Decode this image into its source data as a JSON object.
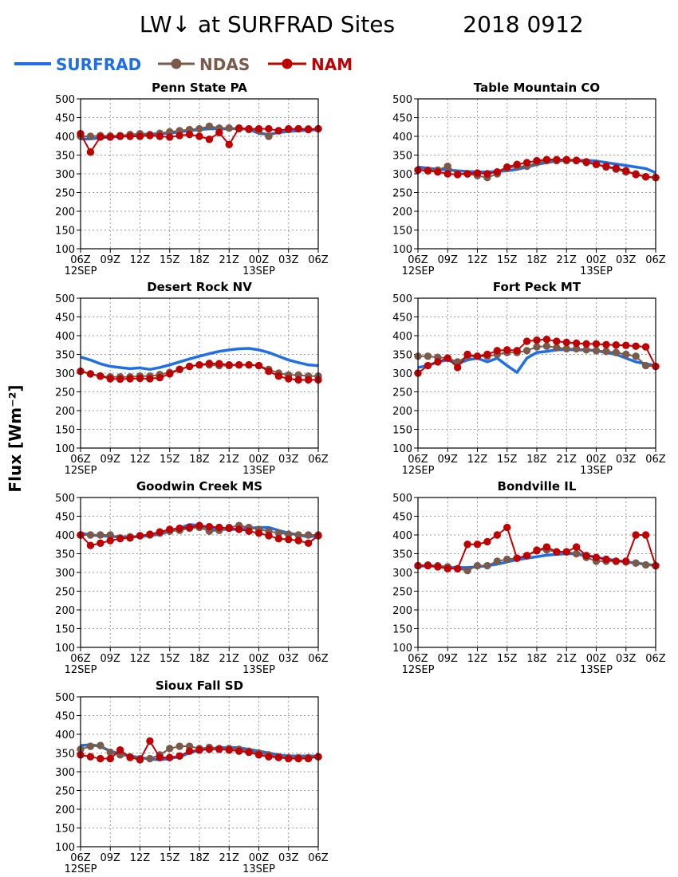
{
  "figure": {
    "title": "LW↓ at SURFRAD Sites",
    "date": "2018 0912",
    "ylabel": "Flux [Wm⁻²]"
  },
  "legend": [
    {
      "name": "SURFRAD",
      "color": "#1e6ee8",
      "marker": "none"
    },
    {
      "name": "NDAS",
      "color": "#7a5a4a",
      "marker": "circle"
    },
    {
      "name": "NAM",
      "color": "#c00000",
      "marker": "circle"
    }
  ],
  "axes": {
    "x_tick_labels": [
      "06Z",
      "09Z",
      "12Z",
      "15Z",
      "18Z",
      "21Z",
      "00Z",
      "03Z",
      "06Z"
    ],
    "x_date_labels": [
      {
        "label": "12SEP",
        "at": 0
      },
      {
        "label": "13SEP",
        "at": 6
      }
    ],
    "y_ticks": [
      100,
      150,
      200,
      250,
      300,
      350,
      400,
      450,
      500
    ],
    "ylim": [
      100,
      500
    ],
    "grid": true
  },
  "chart_data": [
    {
      "type": "line",
      "title": "Penn State PA",
      "x_hours": [
        0,
        1,
        2,
        3,
        4,
        5,
        6,
        7,
        8,
        9,
        10,
        11,
        12,
        13,
        14,
        15,
        16,
        17,
        18,
        19,
        20,
        21,
        22,
        23,
        24
      ],
      "series": [
        {
          "name": "SURFRAD",
          "values": [
            393,
            393,
            396,
            398,
            400,
            402,
            405,
            406,
            407,
            408,
            412,
            415,
            418,
            420,
            420,
            420,
            421,
            418,
            408,
            405,
            410,
            413,
            415,
            416,
            418
          ]
        },
        {
          "name": "NDAS",
          "values": [
            400,
            400,
            402,
            401,
            402,
            405,
            407,
            405,
            408,
            412,
            415,
            418,
            420,
            427,
            422,
            422,
            420,
            418,
            415,
            400,
            415,
            418,
            420,
            420,
            420
          ]
        },
        {
          "name": "NAM",
          "values": [
            407,
            358,
            398,
            398,
            400,
            400,
            400,
            402,
            400,
            398,
            402,
            405,
            400,
            392,
            410,
            378,
            422,
            420,
            420,
            420,
            415,
            420,
            420,
            418,
            420
          ]
        }
      ]
    },
    {
      "type": "line",
      "title": "Table Mountain CO",
      "x_hours": [
        0,
        1,
        2,
        3,
        4,
        5,
        6,
        7,
        8,
        9,
        10,
        11,
        12,
        13,
        14,
        15,
        16,
        17,
        18,
        19,
        20,
        21,
        22,
        23,
        24
      ],
      "series": [
        {
          "name": "SURFRAD",
          "values": [
            318,
            315,
            312,
            310,
            308,
            306,
            305,
            305,
            306,
            308,
            312,
            318,
            325,
            330,
            334,
            336,
            336,
            336,
            334,
            330,
            326,
            322,
            318,
            314,
            303
          ]
        },
        {
          "name": "NDAS",
          "values": [
            310,
            310,
            310,
            320,
            300,
            300,
            295,
            290,
            300,
            315,
            320,
            320,
            330,
            335,
            335,
            335,
            335,
            330,
            325,
            318,
            312,
            305,
            300,
            292,
            290
          ]
        },
        {
          "name": "NAM",
          "values": [
            310,
            308,
            305,
            300,
            298,
            300,
            302,
            300,
            305,
            318,
            325,
            330,
            335,
            338,
            338,
            338,
            336,
            332,
            325,
            320,
            315,
            308,
            298,
            292,
            290
          ]
        }
      ]
    },
    {
      "type": "line",
      "title": "Desert Rock NV",
      "x_hours": [
        0,
        1,
        2,
        3,
        4,
        5,
        6,
        7,
        8,
        9,
        10,
        11,
        12,
        13,
        14,
        15,
        16,
        17,
        18,
        19,
        20,
        21,
        22,
        23,
        24
      ],
      "series": [
        {
          "name": "SURFRAD",
          "values": [
            343,
            335,
            325,
            318,
            315,
            312,
            314,
            310,
            315,
            322,
            330,
            338,
            345,
            352,
            358,
            362,
            365,
            366,
            362,
            355,
            345,
            335,
            328,
            322,
            320
          ]
        },
        {
          "name": "NDAS",
          "values": [
            305,
            298,
            292,
            290,
            290,
            290,
            292,
            292,
            296,
            302,
            310,
            318,
            322,
            322,
            320,
            320,
            322,
            322,
            320,
            310,
            300,
            295,
            295,
            292,
            292
          ]
        },
        {
          "name": "NAM",
          "values": [
            305,
            298,
            292,
            285,
            284,
            285,
            286,
            285,
            288,
            298,
            310,
            318,
            322,
            326,
            325,
            322,
            322,
            322,
            320,
            305,
            292,
            285,
            282,
            282,
            282
          ]
        }
      ]
    },
    {
      "type": "line",
      "title": "Fort Peck MT",
      "x_hours": [
        0,
        1,
        2,
        3,
        4,
        5,
        6,
        7,
        8,
        9,
        10,
        11,
        12,
        13,
        14,
        15,
        16,
        17,
        18,
        19,
        20,
        21,
        22,
        23,
        24
      ],
      "series": [
        {
          "name": "SURFRAD",
          "values": [
            315,
            320,
            330,
            335,
            325,
            335,
            340,
            330,
            340,
            320,
            302,
            340,
            355,
            358,
            362,
            363,
            362,
            362,
            360,
            355,
            350,
            340,
            330,
            325,
            320
          ]
        },
        {
          "name": "NDAS",
          "values": [
            345,
            345,
            342,
            340,
            330,
            345,
            345,
            345,
            350,
            355,
            355,
            360,
            370,
            372,
            368,
            365,
            365,
            362,
            360,
            358,
            355,
            350,
            345,
            320,
            318
          ]
        },
        {
          "name": "NAM",
          "values": [
            300,
            320,
            330,
            340,
            315,
            350,
            345,
            350,
            360,
            362,
            360,
            385,
            388,
            390,
            385,
            382,
            380,
            378,
            378,
            376,
            375,
            374,
            372,
            370,
            318
          ]
        }
      ]
    },
    {
      "type": "line",
      "title": "Goodwin Creek MS",
      "x_hours": [
        0,
        1,
        2,
        3,
        4,
        5,
        6,
        7,
        8,
        9,
        10,
        11,
        12,
        13,
        14,
        15,
        16,
        17,
        18,
        19,
        20,
        21,
        22,
        23,
        24
      ],
      "series": [
        {
          "name": "SURFRAD",
          "values": [
            405,
            400,
            398,
            396,
            395,
            395,
            396,
            398,
            402,
            410,
            418,
            428,
            425,
            418,
            415,
            415,
            415,
            418,
            420,
            420,
            412,
            405,
            400,
            395,
            398
          ]
        },
        {
          "name": "NDAS",
          "values": [
            400,
            400,
            400,
            400,
            392,
            395,
            398,
            400,
            405,
            410,
            412,
            418,
            420,
            410,
            412,
            420,
            425,
            420,
            415,
            410,
            405,
            402,
            400,
            400,
            400
          ]
        },
        {
          "name": "NAM",
          "values": [
            400,
            372,
            378,
            385,
            390,
            392,
            398,
            402,
            408,
            415,
            418,
            420,
            425,
            422,
            420,
            418,
            415,
            410,
            405,
            398,
            390,
            388,
            385,
            378,
            398
          ]
        }
      ]
    },
    {
      "type": "line",
      "title": "Bondville IL",
      "x_hours": [
        0,
        1,
        2,
        3,
        4,
        5,
        6,
        7,
        8,
        9,
        10,
        11,
        12,
        13,
        14,
        15,
        16,
        17,
        18,
        19,
        20,
        21,
        22,
        23,
        24
      ],
      "series": [
        {
          "name": "SURFRAD",
          "values": [
            316,
            318,
            316,
            314,
            313,
            313,
            315,
            318,
            322,
            328,
            334,
            338,
            342,
            346,
            348,
            350,
            350,
            346,
            340,
            336,
            332,
            328,
            325,
            322,
            318
          ]
        },
        {
          "name": "NDAS",
          "values": [
            318,
            320,
            318,
            315,
            310,
            305,
            318,
            318,
            330,
            335,
            338,
            345,
            360,
            360,
            355,
            355,
            350,
            340,
            330,
            330,
            330,
            328,
            325,
            320,
            318
          ]
        },
        {
          "name": "NAM",
          "values": [
            318,
            318,
            315,
            310,
            310,
            375,
            375,
            382,
            400,
            420,
            338,
            345,
            358,
            368,
            355,
            355,
            368,
            345,
            340,
            335,
            330,
            330,
            400,
            400,
            318
          ]
        }
      ]
    },
    {
      "type": "line",
      "title": "Sioux Fall SD",
      "x_hours": [
        0,
        1,
        2,
        3,
        4,
        5,
        6,
        7,
        8,
        9,
        10,
        11,
        12,
        13,
        14,
        15,
        16,
        17,
        18,
        19,
        20,
        21,
        22,
        23,
        24
      ],
      "series": [
        {
          "name": "SURFRAD",
          "values": [
            370,
            372,
            368,
            355,
            348,
            342,
            338,
            334,
            332,
            335,
            340,
            350,
            358,
            362,
            364,
            365,
            364,
            360,
            355,
            350,
            345,
            342,
            342,
            342,
            342
          ]
        },
        {
          "name": "NDAS",
          "values": [
            360,
            368,
            370,
            352,
            345,
            340,
            335,
            335,
            345,
            362,
            368,
            368,
            362,
            365,
            362,
            362,
            360,
            355,
            350,
            345,
            340,
            338,
            338,
            338,
            340
          ]
        },
        {
          "name": "NAM",
          "values": [
            345,
            340,
            335,
            335,
            358,
            338,
            332,
            382,
            338,
            338,
            342,
            355,
            358,
            360,
            360,
            358,
            355,
            352,
            345,
            340,
            338,
            335,
            335,
            335,
            340
          ]
        }
      ]
    }
  ]
}
